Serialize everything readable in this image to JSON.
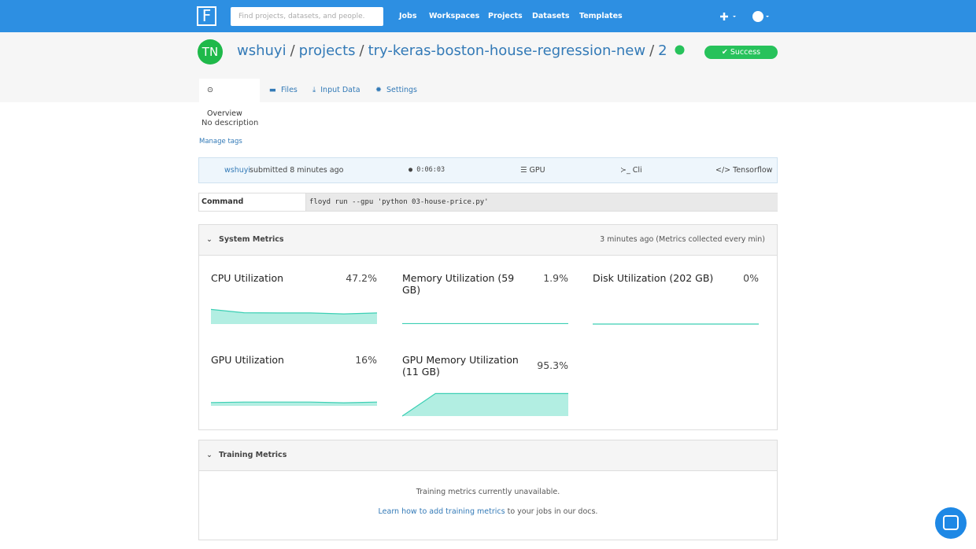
{
  "nav": {
    "logo": "F",
    "search_placeholder": "Find projects, datasets, and people.",
    "links": [
      "Jobs",
      "Workspaces",
      "Projects",
      "Datasets",
      "Templates"
    ]
  },
  "header": {
    "avatar": "TN",
    "breadcrumb": [
      "wshuyi",
      "projects",
      "try-keras-boston-house-regression-new",
      "2"
    ],
    "separator": "/",
    "status": "Success"
  },
  "tabs": [
    "Overview",
    "Files",
    "Input Data",
    "Settings"
  ],
  "description": "No description",
  "manage_tags": "Manage tags",
  "info": {
    "user": "wshuyi",
    "submitted": "submitted 8 minutes ago",
    "duration": "0:06:03",
    "instance": "GPU",
    "mode": "Cli",
    "environment": "Tensorflow"
  },
  "command": {
    "label": "Command",
    "text": "floyd run --gpu 'python 03-house-price.py'"
  },
  "system_metrics": {
    "title": "System Metrics",
    "updated": "3 minutes ago (Metrics collected every min)",
    "metrics": [
      {
        "title": "CPU Utilization",
        "value": "47.2%",
        "trend": [
          62,
          48,
          47,
          47,
          43,
          47.2
        ]
      },
      {
        "title": "Memory Utilization (59 GB)",
        "value": "1.9%",
        "trend": [
          1.9,
          1.9,
          1.9,
          1.9,
          1.9,
          1.9
        ]
      },
      {
        "title": "Disk Utilization (202 GB)",
        "value": "0%",
        "trend": [
          0,
          0,
          0,
          0,
          0,
          0
        ]
      },
      {
        "title": "GPU Utilization",
        "value": "16%",
        "trend": [
          14,
          16,
          16,
          16,
          13,
          16
        ]
      },
      {
        "title": "GPU Memory Utilization (11 GB)",
        "value": "95.3%",
        "trend": [
          0,
          95.3,
          95.3,
          95.3,
          95.3,
          95.3
        ]
      }
    ]
  },
  "training_metrics": {
    "title": "Training Metrics",
    "message": "Training metrics currently unavailable.",
    "help_link": "Learn how to add training metrics",
    "help_suffix": "to your jobs in our docs."
  }
}
